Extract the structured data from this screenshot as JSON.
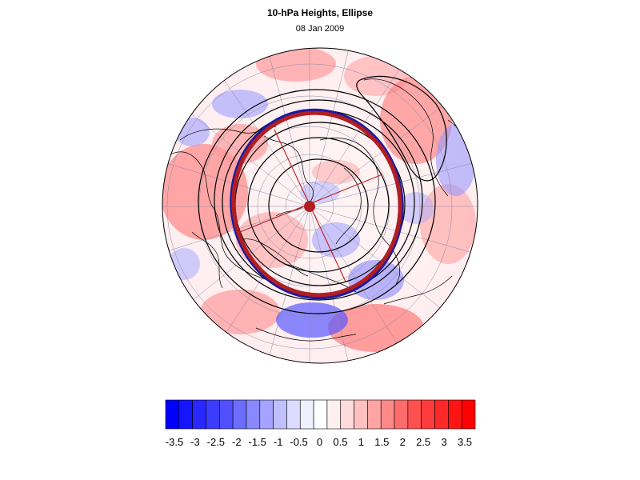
{
  "title": "10-hPa Heights, Ellipse",
  "subtitle": "08 Jan 2009",
  "colorbar": {
    "labels": [
      "-3.5",
      "-3",
      "-2.5",
      "-2",
      "-1.5",
      "-1",
      "-0.5",
      "0",
      "0.5",
      "1",
      "1.5",
      "2",
      "2.5",
      "3",
      "3.5"
    ],
    "colors": [
      "#0000ff",
      "#1414ff",
      "#2828ff",
      "#3c3cff",
      "#5050ff",
      "#6c6cff",
      "#8888ff",
      "#a4a4ff",
      "#c0c0ff",
      "#dcdcff",
      "#f0f0ff",
      "#ffffff",
      "#fff0f0",
      "#ffdcdc",
      "#ffc0c0",
      "#ffa4a4",
      "#ff8888",
      "#ff6c6c",
      "#ff5050",
      "#ff3c3c",
      "#ff2828",
      "#ff1414",
      "#ff0000"
    ]
  },
  "map": {
    "projection": "north polar stereographic",
    "ellipse_color": "#b01e23",
    "ellipse_outline_color": "#1a1aa0",
    "center_marker_color": "#b01e23"
  }
}
